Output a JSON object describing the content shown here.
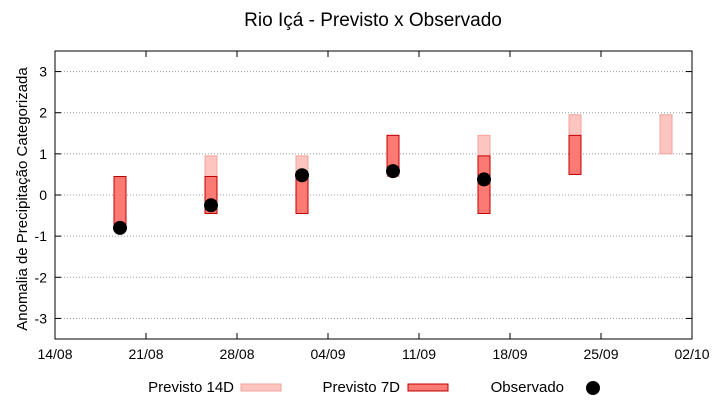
{
  "chart_data": {
    "type": "box-range",
    "title": "Rio Içá - Previsto x Observado",
    "ylabel": "Anomalia de Precipitação Categorizada",
    "xlabel": "",
    "x_ticks": [
      "14/08",
      "21/08",
      "28/08",
      "04/09",
      "11/09",
      "18/09",
      "25/09",
      "02/10"
    ],
    "x_tick_days": [
      0,
      7,
      14,
      21,
      28,
      35,
      42,
      49
    ],
    "xlim_days": [
      0,
      49
    ],
    "y_ticks": [
      "-3",
      "-2",
      "-1",
      "0",
      "1",
      "2",
      "3"
    ],
    "ylim": [
      -3.5,
      3.5
    ],
    "grid": true,
    "colors": {
      "forecast14": "#fcc5c0",
      "forecast14_edge": "#f3a39b",
      "forecast7": "#fb7a74",
      "forecast7_edge": "#c00000",
      "observed": "#000000",
      "grid": "#9a9a9a"
    },
    "series": [
      {
        "name": "Previsto 14D",
        "points": [
          {
            "x": 5,
            "low": 0.45,
            "high": 0.45
          },
          {
            "x": 12,
            "low": -0.45,
            "high": 0.95
          },
          {
            "x": 19,
            "low": -0.45,
            "high": 0.95
          },
          {
            "x": 26,
            "low": 0.45,
            "high": 1.45
          },
          {
            "x": 33,
            "low": -0.45,
            "high": 1.45
          },
          {
            "x": 40,
            "low": 0.5,
            "high": 1.95
          },
          {
            "x": 47,
            "low": 1.0,
            "high": 1.95
          }
        ]
      },
      {
        "name": "Previsto 7D",
        "points": [
          {
            "x": 5,
            "low": -0.8,
            "high": 0.45
          },
          {
            "x": 12,
            "low": -0.45,
            "high": 0.45
          },
          {
            "x": 19,
            "low": -0.45,
            "high": 0.5
          },
          {
            "x": 26,
            "low": 0.6,
            "high": 1.45
          },
          {
            "x": 33,
            "low": -0.45,
            "high": 0.95
          },
          {
            "x": 40,
            "low": 0.5,
            "high": 1.45
          }
        ]
      },
      {
        "name": "Observado",
        "points": [
          {
            "x": 5,
            "y": -0.8
          },
          {
            "x": 12,
            "y": -0.25
          },
          {
            "x": 19,
            "y": 0.48
          },
          {
            "x": 26,
            "y": 0.58
          },
          {
            "x": 33,
            "y": 0.38
          }
        ]
      }
    ],
    "legend": {
      "placement": "bottom",
      "entries": [
        "Previsto 14D",
        "Previsto 7D",
        "Observado"
      ]
    }
  }
}
